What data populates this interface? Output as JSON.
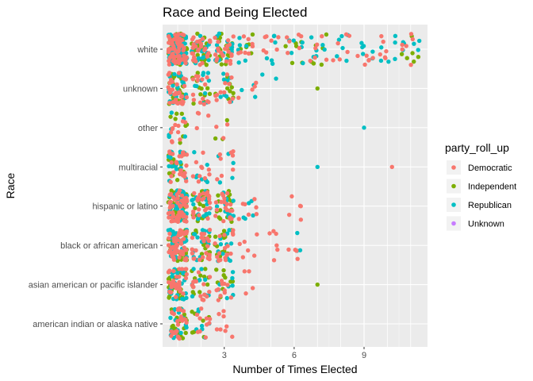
{
  "chart_data": {
    "type": "scatter",
    "subtype": "jitter",
    "title": "Race and Being Elected",
    "xlabel": "Number of Times Elected",
    "ylabel": "Race",
    "xlim": [
      0.55,
      11.45
    ],
    "x_ticks": [
      3,
      6,
      9
    ],
    "grid": true,
    "categories": [
      "american indian or alaska native",
      "asian american or pacific islander",
      "black or african american",
      "hispanic or latino",
      "multiracial",
      "other",
      "unknown",
      "white"
    ],
    "legend": {
      "title": "party_roll_up",
      "position": "right",
      "entries": [
        {
          "name": "Democratic",
          "color": "#F8766D"
        },
        {
          "name": "Independent",
          "color": "#7CAE00"
        },
        {
          "name": "Republican",
          "color": "#00BFC4"
        },
        {
          "name": "Unknown",
          "color": "#C77CFF"
        }
      ]
    },
    "series": [
      {
        "name": "Democratic",
        "color": "#F8766D",
        "points": [
          [
            "white",
            1
          ],
          [
            "white",
            2
          ],
          [
            "white",
            3
          ],
          [
            "white",
            4
          ],
          [
            "white",
            5
          ],
          [
            "white",
            6
          ],
          [
            "white",
            7
          ],
          [
            "white",
            8
          ],
          [
            "white",
            9
          ],
          [
            "white",
            10
          ],
          [
            "white",
            11
          ],
          [
            "unknown",
            1
          ],
          [
            "unknown",
            2
          ],
          [
            "unknown",
            3
          ],
          [
            "unknown",
            4
          ],
          [
            "other",
            1
          ],
          [
            "other",
            2
          ],
          [
            "other",
            3
          ],
          [
            "multiracial",
            1
          ],
          [
            "multiracial",
            2
          ],
          [
            "multiracial",
            3
          ],
          [
            "multiracial",
            10.2
          ],
          [
            "hispanic or latino",
            1
          ],
          [
            "hispanic or latino",
            2
          ],
          [
            "hispanic or latino",
            3
          ],
          [
            "hispanic or latino",
            4
          ],
          [
            "hispanic or latino",
            6
          ],
          [
            "black or african american",
            1
          ],
          [
            "black or african american",
            2
          ],
          [
            "black or african american",
            3
          ],
          [
            "black or african american",
            4
          ],
          [
            "black or african american",
            5
          ],
          [
            "black or african american",
            6
          ],
          [
            "asian american or pacific islander",
            1
          ],
          [
            "asian american or pacific islander",
            2
          ],
          [
            "asian american or pacific islander",
            3
          ],
          [
            "asian american or pacific islander",
            4
          ],
          [
            "american indian or alaska native",
            1
          ],
          [
            "american indian or alaska native",
            2
          ],
          [
            "american indian or alaska native",
            3
          ]
        ]
      },
      {
        "name": "Independent",
        "color": "#7CAE00",
        "points": [
          [
            "white",
            1
          ],
          [
            "white",
            2
          ],
          [
            "white",
            3
          ],
          [
            "white",
            4
          ],
          [
            "white",
            6
          ],
          [
            "white",
            7
          ],
          [
            "white",
            11
          ],
          [
            "unknown",
            1
          ],
          [
            "unknown",
            2
          ],
          [
            "unknown",
            3
          ],
          [
            "unknown",
            7
          ],
          [
            "other",
            1
          ],
          [
            "other",
            3
          ],
          [
            "multiracial",
            1
          ],
          [
            "hispanic or latino",
            1
          ],
          [
            "hispanic or latino",
            2
          ],
          [
            "hispanic or latino",
            3
          ],
          [
            "black or african american",
            1
          ],
          [
            "black or african american",
            2
          ],
          [
            "black or african american",
            3
          ],
          [
            "asian american or pacific islander",
            1
          ],
          [
            "asian american or pacific islander",
            2
          ],
          [
            "asian american or pacific islander",
            3
          ],
          [
            "asian american or pacific islander",
            7
          ],
          [
            "american indian or alaska native",
            1
          ],
          [
            "american indian or alaska native",
            2
          ]
        ]
      },
      {
        "name": "Republican",
        "color": "#00BFC4",
        "points": [
          [
            "white",
            1
          ],
          [
            "white",
            2
          ],
          [
            "white",
            3
          ],
          [
            "white",
            4
          ],
          [
            "white",
            5
          ],
          [
            "white",
            6
          ],
          [
            "white",
            7
          ],
          [
            "white",
            8
          ],
          [
            "white",
            9
          ],
          [
            "white",
            10
          ],
          [
            "white",
            11
          ],
          [
            "unknown",
            1
          ],
          [
            "unknown",
            2
          ],
          [
            "unknown",
            3
          ],
          [
            "unknown",
            4
          ],
          [
            "unknown",
            5
          ],
          [
            "other",
            1
          ],
          [
            "other",
            9
          ],
          [
            "multiracial",
            1
          ],
          [
            "multiracial",
            2
          ],
          [
            "multiracial",
            3
          ],
          [
            "multiracial",
            7
          ],
          [
            "hispanic or latino",
            1
          ],
          [
            "hispanic or latino",
            2
          ],
          [
            "hispanic or latino",
            3
          ],
          [
            "hispanic or latino",
            4
          ],
          [
            "black or african american",
            1
          ],
          [
            "black or african american",
            2
          ],
          [
            "black or african american",
            3
          ],
          [
            "black or african american",
            6
          ],
          [
            "asian american or pacific islander",
            1
          ],
          [
            "asian american or pacific islander",
            2
          ],
          [
            "asian american or pacific islander",
            3
          ],
          [
            "american indian or alaska native",
            1
          ],
          [
            "american indian or alaska native",
            2
          ]
        ]
      },
      {
        "name": "Unknown",
        "color": "#C77CFF",
        "points": []
      }
    ]
  }
}
